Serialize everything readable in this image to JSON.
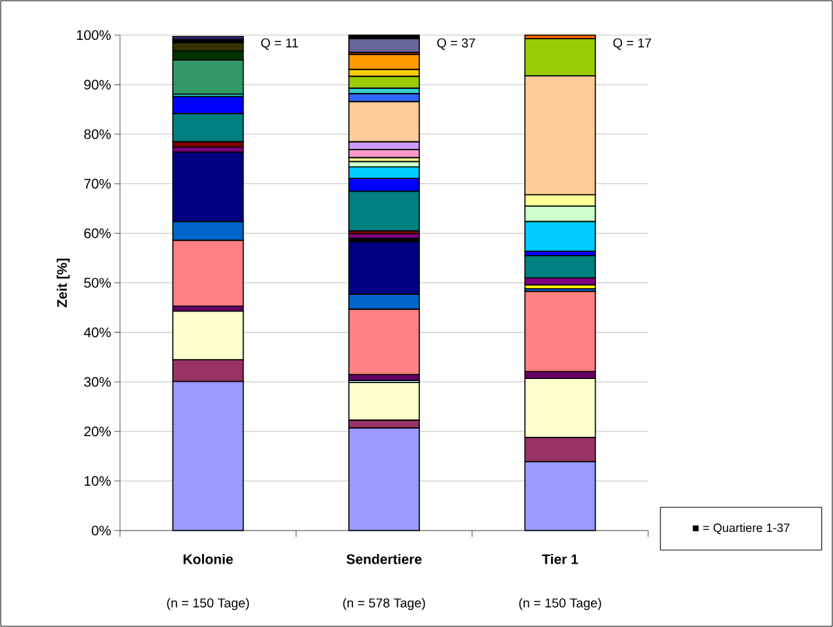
{
  "chart_data": {
    "type": "bar",
    "stacked": true,
    "ylabel": "Zeit [%]",
    "categories": [
      "Kolonie",
      "Sendertiere",
      "Tier 1"
    ],
    "ylim": [
      0,
      100
    ],
    "yticks": [
      {
        "value": 0,
        "label": "0%"
      },
      {
        "value": 10,
        "label": "10%"
      },
      {
        "value": 20,
        "label": "20%"
      },
      {
        "value": 30,
        "label": "30%"
      },
      {
        "value": 40,
        "label": "40%"
      },
      {
        "value": 50,
        "label": "50%"
      },
      {
        "value": 60,
        "label": "60%"
      },
      {
        "value": 70,
        "label": "70%"
      },
      {
        "value": 80,
        "label": "80%"
      },
      {
        "value": 90,
        "label": "90%"
      },
      {
        "value": 100,
        "label": "100%"
      }
    ],
    "grid": "y",
    "series": [
      {
        "color": "#9999ff",
        "values": [
          30.1,
          20.7,
          13.9
        ]
      },
      {
        "color": "#993366",
        "values": [
          4.4,
          1.6,
          4.9
        ]
      },
      {
        "color": "#ffffcc",
        "values": [
          9.8,
          7.6,
          11.9
        ]
      },
      {
        "color": "#ccffff",
        "values": [
          null,
          0.4,
          null
        ]
      },
      {
        "color": "#660066",
        "values": [
          1.0,
          1.2,
          1.4
        ]
      },
      {
        "color": "#ff8080",
        "values": [
          13.3,
          13.2,
          16.2
        ]
      },
      {
        "color": "#0066cc",
        "values": [
          3.8,
          3.0,
          0.5
        ]
      },
      {
        "color": "#000080",
        "values": [
          14.0,
          10.6,
          null
        ]
      },
      {
        "color": "#ffff00",
        "values": [
          null,
          null,
          0.8
        ]
      },
      {
        "color": "#000000",
        "values": [
          null,
          0.7,
          null
        ]
      },
      {
        "color": "#800080",
        "values": [
          1.0,
          0.9,
          1.4
        ]
      },
      {
        "color": "#800000",
        "values": [
          1.1,
          0.6,
          null
        ]
      },
      {
        "color": "#008080",
        "values": [
          5.7,
          8.0,
          4.5
        ]
      },
      {
        "color": "#0000ff",
        "values": [
          3.4,
          2.6,
          0.9
        ]
      },
      {
        "color": "#00ccff",
        "values": [
          null,
          2.3,
          6.0
        ]
      },
      {
        "color": "#ccffcc",
        "values": [
          null,
          1.1,
          3.1
        ]
      },
      {
        "color": "#ffff99",
        "values": [
          null,
          0.8,
          2.3
        ]
      },
      {
        "color": "#ff99cc",
        "values": [
          null,
          1.6,
          null
        ]
      },
      {
        "color": "#cc99ff",
        "values": [
          null,
          1.6,
          null
        ]
      },
      {
        "color": "#ffcc99",
        "values": [
          null,
          8.1,
          24.0
        ]
      },
      {
        "color": "#3366ff",
        "values": [
          null,
          1.6,
          null
        ]
      },
      {
        "color": "#33cccc",
        "values": [
          0.5,
          1.1,
          null
        ]
      },
      {
        "color": "#99cc00",
        "values": [
          null,
          2.4,
          7.5
        ]
      },
      {
        "color": "#ffcc00",
        "values": [
          null,
          1.4,
          null
        ]
      },
      {
        "color": "#ff9900",
        "values": [
          null,
          3.0,
          null
        ]
      },
      {
        "color": "#ff6600",
        "values": [
          null,
          null,
          0.7
        ]
      },
      {
        "color": "#993300",
        "values": [
          null,
          0.4,
          null
        ]
      },
      {
        "color": "#339966",
        "values": [
          6.9,
          null,
          null
        ]
      },
      {
        "color": "#003300",
        "values": [
          1.8,
          null,
          null
        ]
      },
      {
        "color": "#333300",
        "values": [
          1.7,
          null,
          null
        ]
      },
      {
        "color": "#666699",
        "values": [
          null,
          2.8,
          null
        ]
      },
      {
        "color": "#000000",
        "values": [
          0.4,
          0.7,
          null
        ]
      },
      {
        "color": "#993366",
        "values": [
          0.3,
          null,
          null
        ]
      },
      {
        "color": "#333399",
        "values": [
          0.5,
          null,
          null
        ]
      }
    ],
    "annotations": [
      "Q = 11",
      "Q = 37",
      "Q = 17",
      "(n = 150 Tage)",
      "(n = 578 Tage)",
      "(n = 150 Tage)",
      "■ = Quartiere 1-37"
    ]
  }
}
